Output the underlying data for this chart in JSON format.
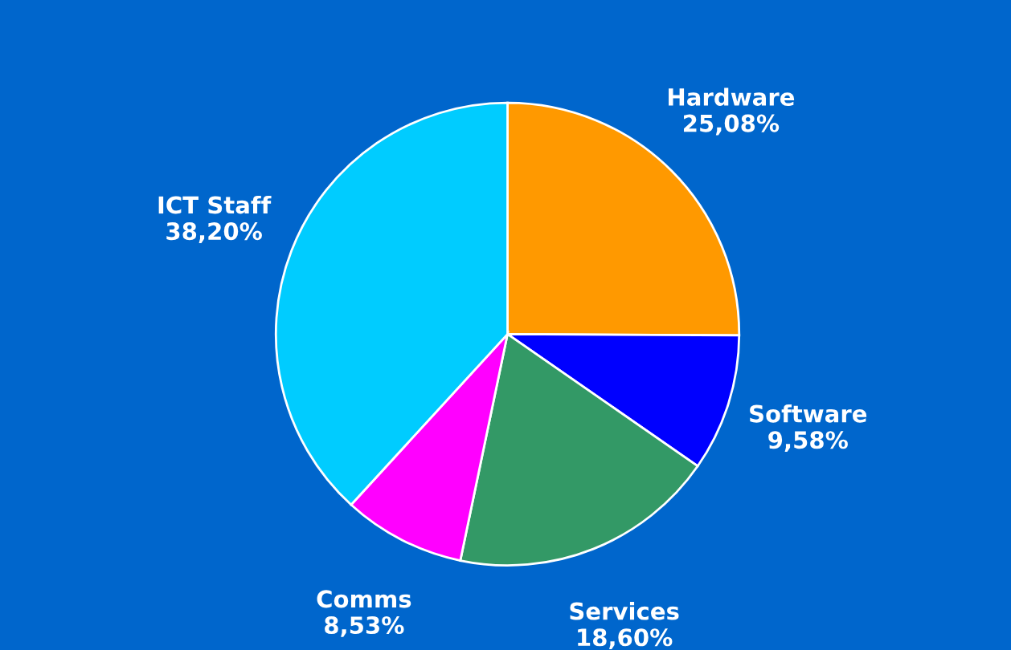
{
  "chart_data": {
    "type": "pie",
    "categories": [
      "Hardware",
      "Software",
      "Services",
      "Comms",
      "ICT Staff"
    ],
    "values": [
      25.08,
      9.58,
      18.6,
      8.53,
      38.2
    ],
    "value_labels": [
      "25,08%",
      "9,58%",
      "18,60%",
      "8,53%",
      "38,20%"
    ],
    "colors": [
      "#ff9900",
      "#0000ff",
      "#339966",
      "#ff00ff",
      "#00ccff"
    ]
  }
}
